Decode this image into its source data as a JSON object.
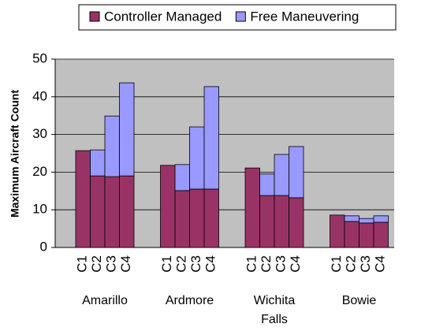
{
  "chart_data": {
    "type": "stacked-bar",
    "y_label": "Maximum Aircraft Count",
    "groups": [
      "Amarillo",
      "Ardmore",
      "Wichita Falls",
      "Bowie"
    ],
    "categories": [
      "C1",
      "C2",
      "C3",
      "C4",
      "C1",
      "C2",
      "C3",
      "C4",
      "C1",
      "C2",
      "C3",
      "C4",
      "C1",
      "C2",
      "C3",
      "C4"
    ],
    "series": [
      {
        "name": "Controller Managed",
        "color": "#993366",
        "values": [
          25.7,
          19.0,
          18.8,
          19.0,
          21.8,
          15.1,
          15.5,
          15.5,
          21.1,
          13.8,
          13.8,
          13.2,
          8.6,
          6.9,
          6.5,
          6.7
        ]
      },
      {
        "name": "Free Maneuvering",
        "color": "#9999ff",
        "values": [
          0,
          6.9,
          16.1,
          24.7,
          0,
          6.9,
          16.5,
          27.2,
          0,
          5.7,
          10.9,
          13.6,
          0,
          1.5,
          1.2,
          1.7
        ]
      }
    ],
    "ylim": [
      0,
      50
    ],
    "yticks": [
      0,
      10,
      20,
      30,
      40,
      50
    ],
    "grid": true,
    "legend": "top"
  }
}
